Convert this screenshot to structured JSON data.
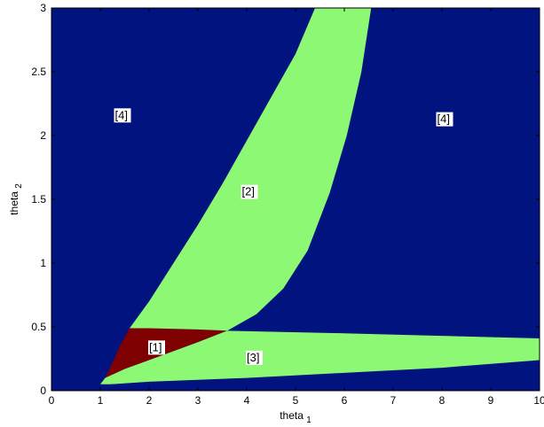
{
  "colors": {
    "background_region": "#00137f",
    "light_region": "#8cf873",
    "dark_region": "#7f0000"
  },
  "chart_data": {
    "type": "heatmap",
    "xlabel": "theta",
    "xlabel_sub": "1",
    "ylabel": "theta",
    "ylabel_sub": "2",
    "xlim": [
      0,
      10
    ],
    "ylim": [
      0,
      3
    ],
    "x_ticks": [
      "0",
      "1",
      "2",
      "3",
      "4",
      "5",
      "6",
      "7",
      "8",
      "9",
      "10"
    ],
    "y_ticks": [
      "0",
      "0.5",
      "1",
      "1.5",
      "2",
      "2.5",
      "3"
    ],
    "grid": false,
    "regions": [
      {
        "label": "[1]",
        "color": "#7f0000",
        "label_at": [
          2.0,
          0.31
        ],
        "boundary": [
          [
            1.1,
            0.1
          ],
          [
            1.5,
            0.17
          ],
          [
            2.0,
            0.24
          ],
          [
            2.5,
            0.31
          ],
          [
            3.0,
            0.38
          ],
          [
            3.4,
            0.44
          ],
          [
            3.6,
            0.47
          ],
          [
            3.0,
            0.48
          ],
          [
            2.0,
            0.49
          ],
          [
            1.6,
            0.49
          ],
          [
            1.4,
            0.35
          ],
          [
            1.25,
            0.22
          ]
        ]
      },
      {
        "label": "[2]",
        "color": "#8cf873",
        "label_at": [
          3.9,
          1.53
        ],
        "boundary": [
          [
            1.6,
            0.49
          ],
          [
            2.0,
            0.7
          ],
          [
            2.5,
            1.0
          ],
          [
            3.0,
            1.3
          ],
          [
            3.5,
            1.62
          ],
          [
            4.0,
            1.96
          ],
          [
            4.5,
            2.3
          ],
          [
            5.0,
            2.64
          ],
          [
            5.4,
            3.0
          ],
          [
            6.55,
            3.0
          ],
          [
            6.35,
            2.5
          ],
          [
            6.05,
            2.0
          ],
          [
            5.7,
            1.55
          ],
          [
            5.25,
            1.1
          ],
          [
            4.75,
            0.8
          ],
          [
            4.2,
            0.6
          ],
          [
            3.6,
            0.47
          ],
          [
            3.0,
            0.48
          ],
          [
            2.0,
            0.49
          ]
        ]
      },
      {
        "label": "[3]",
        "color": "#8cf873",
        "label_at": [
          4.0,
          0.23
        ],
        "boundary": [
          [
            1.0,
            0.05
          ],
          [
            1.1,
            0.1
          ],
          [
            1.5,
            0.17
          ],
          [
            2.0,
            0.24
          ],
          [
            2.5,
            0.31
          ],
          [
            3.0,
            0.38
          ],
          [
            3.4,
            0.44
          ],
          [
            3.6,
            0.47
          ],
          [
            6.0,
            0.45
          ],
          [
            8.0,
            0.43
          ],
          [
            10.0,
            0.41
          ],
          [
            10.0,
            0.24
          ],
          [
            8.0,
            0.18
          ],
          [
            6.0,
            0.14
          ],
          [
            4.0,
            0.1
          ],
          [
            2.0,
            0.07
          ],
          [
            1.2,
            0.05
          ]
        ]
      },
      {
        "label": "[4]",
        "color": "#00137f",
        "label_at": [
          [
            1.3,
            2.13
          ],
          [
            7.9,
            2.1
          ]
        ]
      }
    ]
  }
}
